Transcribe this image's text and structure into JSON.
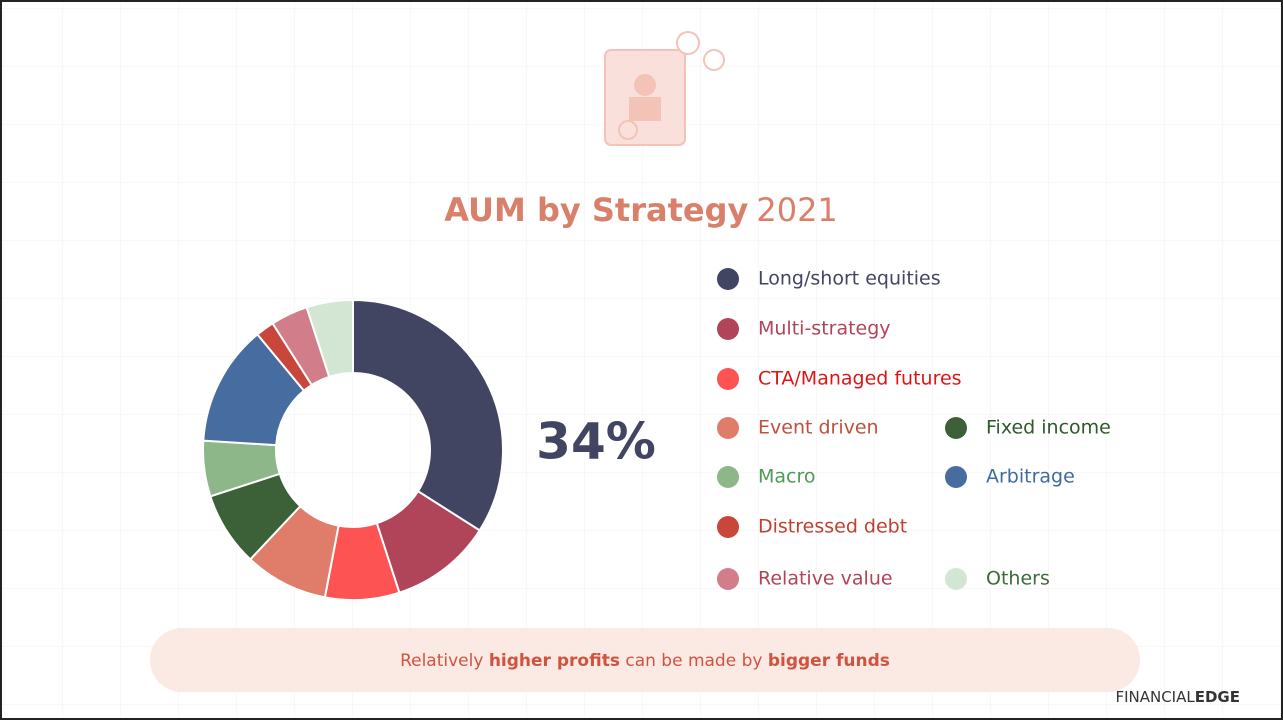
{
  "chart_data": {
    "type": "donut",
    "title": "AUM by Strategy",
    "title_year": "2021",
    "categories": [
      "Long/short equities",
      "Multi-strategy",
      "CTA/Managed futures",
      "Event driven",
      "Fixed income",
      "Macro",
      "Arbitrage",
      "Distressed debt",
      "Relative value",
      "Others"
    ],
    "values": [
      34,
      11,
      8,
      9,
      8,
      6,
      13,
      2,
      4,
      5
    ],
    "value_labels": [
      "34%"
    ],
    "colors": [
      "#424562",
      "#b04458",
      "#fd5353",
      "#e07c6a",
      "#3c6038",
      "#8db788",
      "#466ca0",
      "#c9463a",
      "#d27d8a",
      "#d3e6d3"
    ],
    "label_colors": [
      "#424562",
      "#b04458",
      "#e01414",
      "#c0503e",
      "#2d5a2a",
      "#4f9a55",
      "#3d6aa0",
      "#c0402f",
      "#b04458",
      "#3c6b3c"
    ]
  },
  "caption": [
    {
      "text": "Relatively ",
      "bold": false
    },
    {
      "text": "higher profits",
      "bold": true
    },
    {
      "text": " can be made by ",
      "bold": false
    },
    {
      "text": "bigger funds",
      "bold": true
    }
  ],
  "logo": [
    "FINANCIAL",
    "EDGE"
  ]
}
